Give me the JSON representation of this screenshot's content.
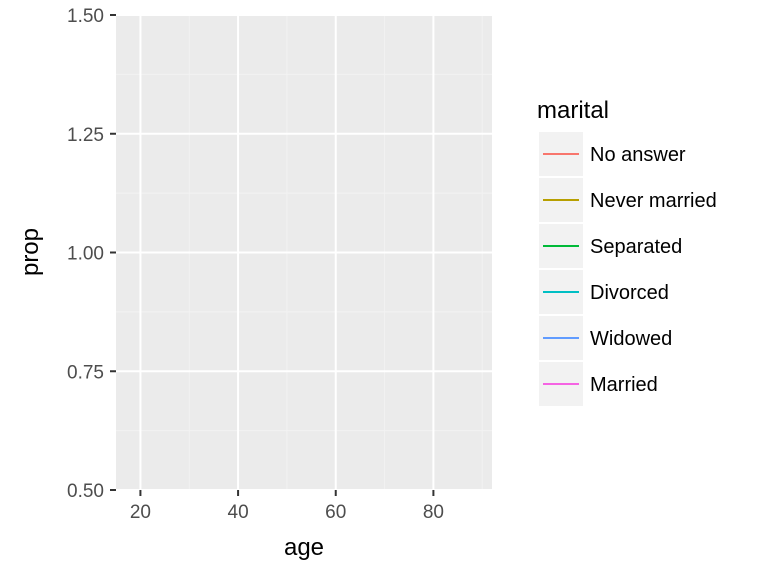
{
  "chart_data": {
    "type": "line",
    "title": "",
    "xlabel": "age",
    "ylabel": "prop",
    "xlim": [
      15,
      92
    ],
    "ylim": [
      0.5,
      1.5
    ],
    "x_ticks": [
      20,
      40,
      60,
      80
    ],
    "y_ticks": [
      0.5,
      0.75,
      1.0,
      1.25,
      1.5
    ],
    "x_tick_labels": [
      "20",
      "40",
      "60",
      "80"
    ],
    "y_tick_labels": [
      "0.50",
      "0.75",
      "1.00",
      "1.25",
      "1.50"
    ],
    "grid": true,
    "legend": {
      "title": "marital",
      "position": "right"
    },
    "series": [
      {
        "name": "No answer",
        "color": "#F8766D",
        "x": [],
        "y": []
      },
      {
        "name": "Never married",
        "color": "#B79F00",
        "x": [],
        "y": []
      },
      {
        "name": "Separated",
        "color": "#00BA38",
        "x": [],
        "y": []
      },
      {
        "name": "Divorced",
        "color": "#00BFC4",
        "x": [],
        "y": []
      },
      {
        "name": "Widowed",
        "color": "#619CFF",
        "x": [],
        "y": []
      },
      {
        "name": "Married",
        "color": "#F564E3",
        "x": [],
        "y": []
      }
    ]
  }
}
